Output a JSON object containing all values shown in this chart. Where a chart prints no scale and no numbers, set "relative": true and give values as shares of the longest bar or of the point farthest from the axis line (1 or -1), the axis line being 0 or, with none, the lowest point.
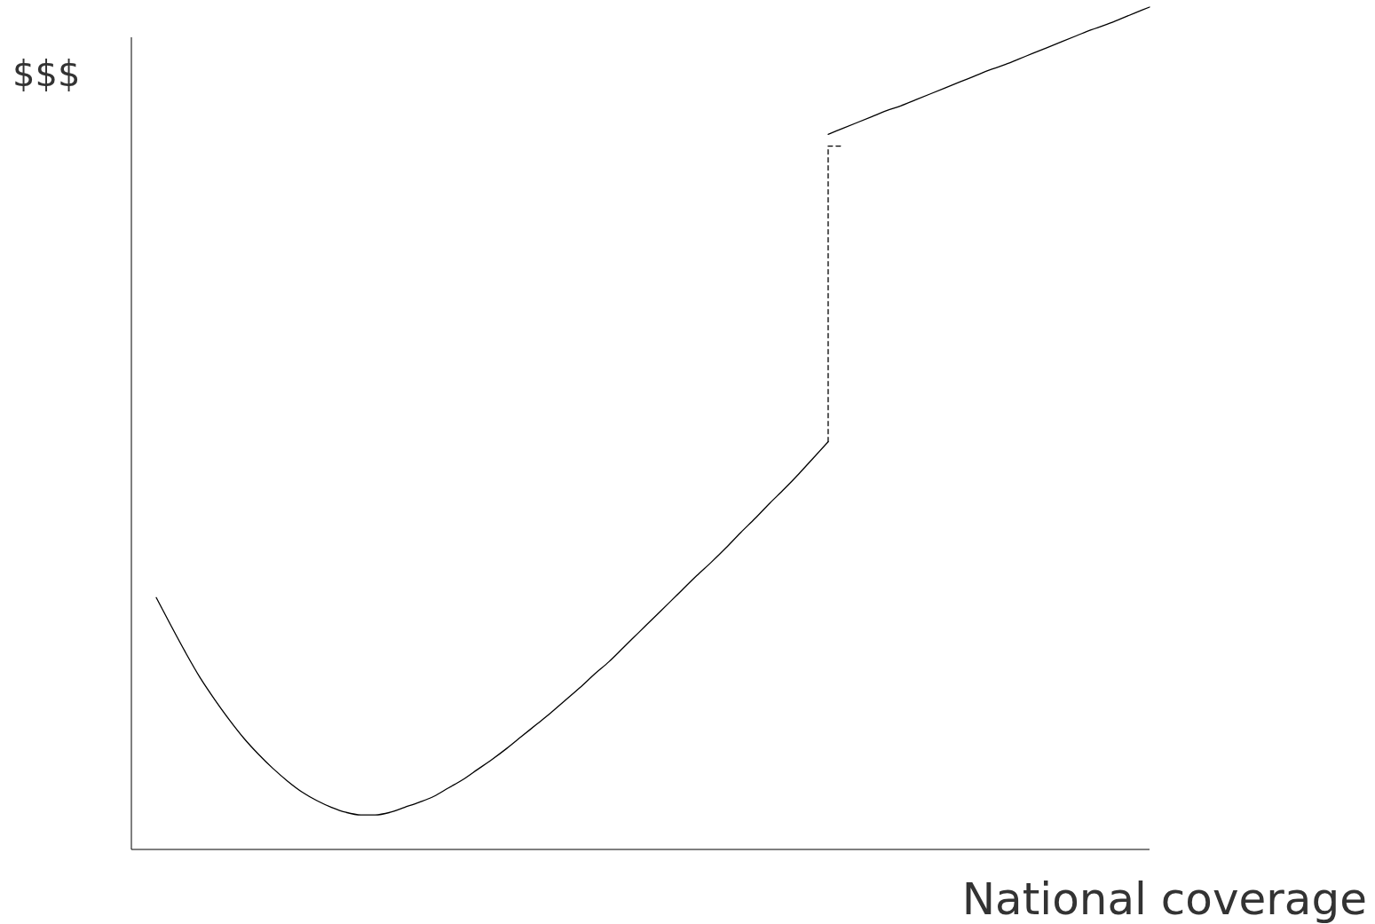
{
  "chart_data": {
    "type": "line",
    "relative": true,
    "xlabel": "National coverage",
    "ylabel": "$$$",
    "categories": [
      null,
      null,
      null,
      null,
      null,
      null,
      null,
      null,
      null,
      null,
      null,
      null,
      null,
      null,
      null,
      null,
      null,
      null,
      null,
      null,
      null,
      null,
      null,
      null,
      null,
      null,
      null,
      null,
      null,
      null,
      null,
      null,
      null,
      null,
      null,
      null,
      null,
      null,
      null,
      null,
      null,
      null,
      null,
      null,
      null,
      null,
      null,
      null,
      null,
      null,
      null,
      null,
      null,
      null,
      null,
      null,
      null,
      null,
      null,
      null,
      null,
      null,
      null,
      null,
      null,
      null,
      null,
      null,
      null
    ],
    "series": [
      {
        "color": "#000000",
        "line_style": "solid",
        "values": [
          0.299,
          0.266,
          0.234,
          0.204,
          0.178,
          0.154,
          0.132,
          0.113,
          0.096,
          0.081,
          0.068,
          0.058,
          0.05,
          0.044,
          0.041,
          0.041,
          0.044,
          0.05,
          0.056,
          0.063,
          0.073,
          0.083,
          0.095,
          0.107,
          0.12,
          0.134,
          0.148,
          0.162,
          0.177,
          0.192,
          0.208,
          0.223,
          0.24,
          0.257,
          0.274,
          0.291,
          0.308,
          0.325,
          0.341,
          0.358,
          0.376,
          0.393,
          0.411,
          0.428,
          0.446,
          0.465,
          0.484,
          null,
          null,
          null,
          null,
          null,
          null,
          null,
          null,
          null,
          null,
          null,
          null,
          null,
          null,
          null,
          null,
          null,
          null,
          null,
          null,
          null,
          null
        ]
      },
      {
        "type": "step",
        "color": "#000000",
        "line_style": "dashed",
        "values": [
          null,
          null,
          null,
          null,
          null,
          null,
          null,
          null,
          null,
          null,
          null,
          null,
          null,
          null,
          null,
          null,
          null,
          null,
          null,
          null,
          null,
          null,
          null,
          null,
          null,
          null,
          null,
          null,
          null,
          null,
          null,
          null,
          null,
          null,
          null,
          null,
          null,
          null,
          null,
          null,
          null,
          null,
          null,
          null,
          null,
          null,
          0.484,
          0.835,
          null,
          null,
          null,
          null,
          null,
          null,
          null,
          null,
          null,
          null,
          null,
          null,
          null,
          null,
          null,
          null,
          null,
          null,
          null,
          null,
          null
        ]
      },
      {
        "color": "#000000",
        "line_style": "solid",
        "values": [
          null,
          null,
          null,
          null,
          null,
          null,
          null,
          null,
          null,
          null,
          null,
          null,
          null,
          null,
          null,
          null,
          null,
          null,
          null,
          null,
          null,
          null,
          null,
          null,
          null,
          null,
          null,
          null,
          null,
          null,
          null,
          null,
          null,
          null,
          null,
          null,
          null,
          null,
          null,
          null,
          null,
          null,
          null,
          null,
          null,
          null,
          0.849,
          0.856,
          0.863,
          0.87,
          0.877,
          0.883,
          0.89,
          0.897,
          0.904,
          0.911,
          0.918,
          0.925,
          0.931,
          0.938,
          0.945,
          0.952,
          0.959,
          0.966,
          0.973,
          0.979,
          0.986,
          0.993,
          1
        ]
      }
    ]
  }
}
